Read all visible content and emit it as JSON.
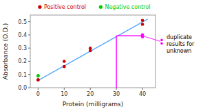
{
  "chart_data": {
    "type": "scatter",
    "marker": "circle",
    "legend": "top",
    "xlabel": "Protein (milligrams)",
    "ylabel": "Absorbance (O.D.)",
    "annotation": "duplicate\nresults for\nunknown",
    "xlim": [
      -3,
      45
    ],
    "ylim": [
      0.0,
      0.55
    ],
    "xticks": [
      0,
      10,
      20,
      30,
      40
    ],
    "yticks": [
      {
        "value": 0.0,
        "label": "0.0"
      },
      0.1,
      0.2,
      0.3,
      0.4,
      0.5
    ],
    "series": [
      {
        "type": "line",
        "color": "#55aaff",
        "x": [
          0,
          42
        ],
        "values": [
          0.055,
          0.52
        ]
      },
      {
        "type": "line",
        "color": "#ff00ff",
        "x": [
          30,
          40
        ],
        "values": [
          0.393,
          0.393
        ]
      },
      {
        "type": "line",
        "color": "#ff00ff",
        "x": [
          30,
          30
        ],
        "values": [
          0.0,
          0.393
        ]
      },
      {
        "name": "Positive control",
        "type": "scatter",
        "color": "#cc0000",
        "x": [
          0,
          0,
          10,
          10,
          20,
          20,
          40,
          40
        ],
        "values": [
          0.06,
          0.06,
          0.16,
          0.2,
          0.28,
          0.3,
          0.48,
          0.51
        ]
      },
      {
        "name": "Negative control",
        "type": "scatter",
        "color": "#00cc00",
        "x": [
          0,
          0
        ],
        "values": [
          0.09,
          0.09
        ]
      },
      {
        "type": "scatter",
        "color": "#ff00ff",
        "x": [
          40,
          40
        ],
        "values": [
          0.385,
          0.4
        ]
      }
    ]
  }
}
